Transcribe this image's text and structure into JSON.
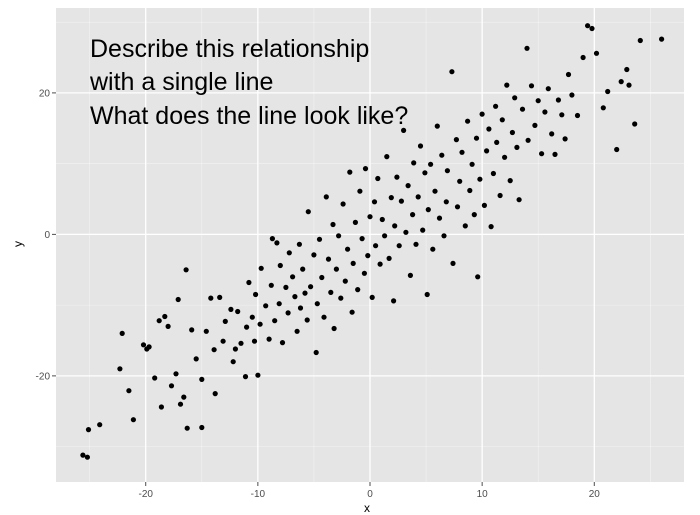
{
  "chart_data": {
    "type": "scatter",
    "title": "",
    "xlabel": "x",
    "ylabel": "y",
    "xlim": [
      -28,
      28
    ],
    "ylim": [
      -35,
      32
    ],
    "x_ticks": [
      -20,
      -10,
      0,
      10,
      20
    ],
    "y_ticks": [
      -20,
      0,
      20
    ],
    "x_tick_labels": [
      "-20",
      "-10",
      "0",
      "10",
      "20"
    ],
    "y_tick_labels": [
      "-20",
      "0",
      "20"
    ],
    "grid": true,
    "legend": "none",
    "annotation_lines": [
      "Describe this relationship",
      "with a single line",
      "What does the line look like?"
    ],
    "colors": {
      "panel": "#e5e5e5",
      "grid_major": "#ffffff",
      "point": "#000000"
    },
    "series": [
      {
        "points": [
          [
            -25.6,
            -31.2
          ],
          [
            -25.2,
            -31.5
          ],
          [
            -25.1,
            -27.6
          ],
          [
            -24.1,
            -26.9
          ],
          [
            -22.1,
            -14.0
          ],
          [
            -22.3,
            -19.0
          ],
          [
            -21.5,
            -22.1
          ],
          [
            -21.1,
            -26.2
          ],
          [
            -20.2,
            -15.6
          ],
          [
            -19.9,
            -16.2
          ],
          [
            -19.7,
            -15.9
          ],
          [
            -19.2,
            -20.3
          ],
          [
            -18.8,
            -12.2
          ],
          [
            -18.6,
            -24.4
          ],
          [
            -18.3,
            -11.6
          ],
          [
            -18.0,
            -13.0
          ],
          [
            -17.7,
            -21.4
          ],
          [
            -17.3,
            -19.7
          ],
          [
            -17.1,
            -9.2
          ],
          [
            -16.9,
            -24.0
          ],
          [
            -16.6,
            -23.0
          ],
          [
            -16.4,
            -5.0
          ],
          [
            -16.3,
            -27.4
          ],
          [
            -15.9,
            -13.5
          ],
          [
            -15.5,
            -17.6
          ],
          [
            -15.0,
            -27.3
          ],
          [
            -15.0,
            -20.5
          ],
          [
            -14.6,
            -13.7
          ],
          [
            -14.2,
            -9.0
          ],
          [
            -13.9,
            -16.3
          ],
          [
            -13.8,
            -22.5
          ],
          [
            -13.4,
            -8.9
          ],
          [
            -13.1,
            -15.1
          ],
          [
            -12.9,
            -12.3
          ],
          [
            -12.4,
            -10.6
          ],
          [
            -12.2,
            -18.0
          ],
          [
            -12.0,
            -16.2
          ],
          [
            -11.8,
            -10.9
          ],
          [
            -11.5,
            -15.4
          ],
          [
            -11.1,
            -20.1
          ],
          [
            -11.0,
            -13.1
          ],
          [
            -10.8,
            -6.8
          ],
          [
            -10.5,
            -11.7
          ],
          [
            -10.3,
            -15.1
          ],
          [
            -10.2,
            -8.5
          ],
          [
            -10.0,
            -19.9
          ],
          [
            -9.8,
            -12.7
          ],
          [
            -9.7,
            -4.8
          ],
          [
            -9.3,
            -10.1
          ],
          [
            -9.0,
            -14.8
          ],
          [
            -8.8,
            -7.2
          ],
          [
            -8.7,
            -0.6
          ],
          [
            -8.5,
            -12.2
          ],
          [
            -8.3,
            -1.2
          ],
          [
            -8.1,
            -9.8
          ],
          [
            -8.0,
            -4.4
          ],
          [
            -7.8,
            -15.3
          ],
          [
            -7.5,
            -7.5
          ],
          [
            -7.3,
            -11.1
          ],
          [
            -7.2,
            -2.6
          ],
          [
            -6.9,
            -6.0
          ],
          [
            -6.7,
            -8.8
          ],
          [
            -6.5,
            -13.7
          ],
          [
            -6.3,
            -1.4
          ],
          [
            -6.2,
            -10.4
          ],
          [
            -6.0,
            -4.9
          ],
          [
            -5.8,
            -8.3
          ],
          [
            -5.6,
            -12.1
          ],
          [
            -5.5,
            3.2
          ],
          [
            -5.3,
            -7.4
          ],
          [
            -5.0,
            -2.9
          ],
          [
            -4.8,
            -16.7
          ],
          [
            -4.7,
            -9.8
          ],
          [
            -4.5,
            -0.7
          ],
          [
            -4.3,
            -6.1
          ],
          [
            -4.1,
            -11.7
          ],
          [
            -3.9,
            5.3
          ],
          [
            -3.7,
            -3.5
          ],
          [
            -3.5,
            -8.2
          ],
          [
            -3.3,
            1.4
          ],
          [
            -3.2,
            -13.3
          ],
          [
            -3.0,
            -4.9
          ],
          [
            -2.8,
            -0.2
          ],
          [
            -2.6,
            -9.0
          ],
          [
            -2.4,
            4.3
          ],
          [
            -2.2,
            -6.6
          ],
          [
            -2.0,
            -2.1
          ],
          [
            -1.8,
            8.8
          ],
          [
            -1.6,
            -11.0
          ],
          [
            -1.5,
            -4.1
          ],
          [
            -1.3,
            1.7
          ],
          [
            -1.1,
            -7.8
          ],
          [
            -0.9,
            6.1
          ],
          [
            -0.7,
            -0.6
          ],
          [
            -0.5,
            -5.5
          ],
          [
            -0.4,
            9.3
          ],
          [
            -0.2,
            -3.0
          ],
          [
            0.0,
            2.5
          ],
          [
            0.2,
            -8.9
          ],
          [
            0.4,
            4.6
          ],
          [
            0.5,
            -1.6
          ],
          [
            0.7,
            7.9
          ],
          [
            0.9,
            -4.2
          ],
          [
            1.1,
            2.1
          ],
          [
            1.3,
            -0.2
          ],
          [
            1.5,
            11.0
          ],
          [
            1.7,
            -3.4
          ],
          [
            1.9,
            5.2
          ],
          [
            2.1,
            -9.4
          ],
          [
            2.2,
            1.2
          ],
          [
            2.4,
            8.1
          ],
          [
            2.6,
            -1.6
          ],
          [
            2.8,
            4.7
          ],
          [
            3.0,
            14.7
          ],
          [
            3.2,
            0.3
          ],
          [
            3.4,
            6.9
          ],
          [
            3.6,
            -5.8
          ],
          [
            3.8,
            2.8
          ],
          [
            3.9,
            10.1
          ],
          [
            4.1,
            -1.4
          ],
          [
            4.3,
            5.3
          ],
          [
            4.5,
            12.5
          ],
          [
            4.7,
            0.6
          ],
          [
            4.9,
            8.7
          ],
          [
            5.1,
            -8.5
          ],
          [
            5.2,
            3.5
          ],
          [
            5.4,
            9.9
          ],
          [
            5.6,
            -2.1
          ],
          [
            5.8,
            6.1
          ],
          [
            6.0,
            15.3
          ],
          [
            6.2,
            2.3
          ],
          [
            6.4,
            11.2
          ],
          [
            6.6,
            -0.2
          ],
          [
            6.8,
            4.6
          ],
          [
            6.9,
            9.0
          ],
          [
            7.3,
            23.0
          ],
          [
            7.4,
            -4.1
          ],
          [
            7.7,
            13.4
          ],
          [
            7.8,
            3.9
          ],
          [
            8.0,
            7.5
          ],
          [
            8.2,
            11.6
          ],
          [
            8.5,
            1.2
          ],
          [
            8.7,
            16.0
          ],
          [
            8.9,
            6.2
          ],
          [
            9.1,
            9.9
          ],
          [
            9.3,
            2.8
          ],
          [
            9.5,
            13.6
          ],
          [
            9.6,
            -6.0
          ],
          [
            9.8,
            7.8
          ],
          [
            10.0,
            17.0
          ],
          [
            10.2,
            4.1
          ],
          [
            10.4,
            11.8
          ],
          [
            10.6,
            14.9
          ],
          [
            10.8,
            1.1
          ],
          [
            11.0,
            8.6
          ],
          [
            11.2,
            18.1
          ],
          [
            11.3,
            13.0
          ],
          [
            11.6,
            5.5
          ],
          [
            11.8,
            16.2
          ],
          [
            12.0,
            10.9
          ],
          [
            12.2,
            21.1
          ],
          [
            12.5,
            7.6
          ],
          [
            12.7,
            14.4
          ],
          [
            12.9,
            19.3
          ],
          [
            13.1,
            12.3
          ],
          [
            13.3,
            4.9
          ],
          [
            13.6,
            17.7
          ],
          [
            14.0,
            26.3
          ],
          [
            14.1,
            13.3
          ],
          [
            14.4,
            21.0
          ],
          [
            14.7,
            15.4
          ],
          [
            15.0,
            18.9
          ],
          [
            15.3,
            11.4
          ],
          [
            15.6,
            17.3
          ],
          [
            15.9,
            20.6
          ],
          [
            16.2,
            14.2
          ],
          [
            16.5,
            11.3
          ],
          [
            16.8,
            19.0
          ],
          [
            17.1,
            16.9
          ],
          [
            17.4,
            13.5
          ],
          [
            17.7,
            22.6
          ],
          [
            18.0,
            19.7
          ],
          [
            18.5,
            16.8
          ],
          [
            19.0,
            25.0
          ],
          [
            19.4,
            29.5
          ],
          [
            19.8,
            29.1
          ],
          [
            20.2,
            25.6
          ],
          [
            20.8,
            17.9
          ],
          [
            21.2,
            20.2
          ],
          [
            22.0,
            12.0
          ],
          [
            22.4,
            21.6
          ],
          [
            22.9,
            23.3
          ],
          [
            23.1,
            21.1
          ],
          [
            23.6,
            15.6
          ],
          [
            24.1,
            27.4
          ],
          [
            26.0,
            27.6
          ]
        ]
      }
    ]
  }
}
